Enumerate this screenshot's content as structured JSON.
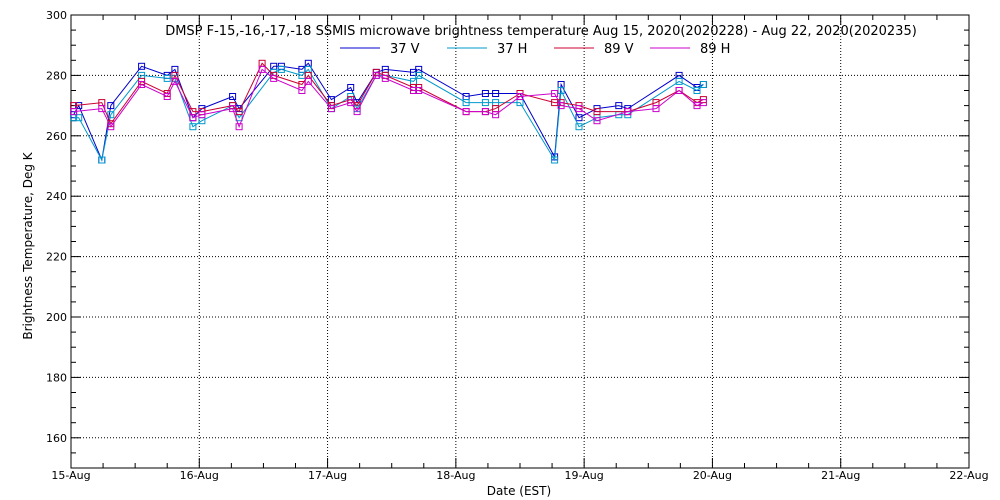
{
  "chart_data": {
    "type": "line",
    "title": "DMSP F-15,-16,-17,-18 SSMIS microwave brightness temperature Aug 15, 2020(2020228) - Aug 22, 2020(2020235)",
    "xlabel": "Date (EST)",
    "ylabel": "Brightness Temperature, Deg K",
    "xlim": [
      0,
      7
    ],
    "ylim": [
      150,
      300
    ],
    "x_ticks": [
      {
        "value": 0,
        "label": "15-Aug"
      },
      {
        "value": 1,
        "label": "16-Aug"
      },
      {
        "value": 2,
        "label": "17-Aug"
      },
      {
        "value": 3,
        "label": "18-Aug"
      },
      {
        "value": 4,
        "label": "19-Aug"
      },
      {
        "value": 5,
        "label": "20-Aug"
      },
      {
        "value": 6,
        "label": "21-Aug"
      },
      {
        "value": 7,
        "label": "22-Aug"
      }
    ],
    "y_ticks": [
      150,
      160,
      180,
      200,
      220,
      240,
      260,
      280,
      300
    ],
    "y_tick_labels": [
      "",
      "160",
      "180",
      "200",
      "220",
      "240",
      "260",
      "280",
      "300"
    ],
    "grid": true,
    "legend_position": "top-center",
    "series": [
      {
        "name": "37 V",
        "color": "#0000cc",
        "x": [
          0.02,
          0.06,
          0.24,
          0.31,
          0.55,
          0.75,
          0.81,
          0.95,
          1.02,
          1.26,
          1.31,
          1.58,
          1.64,
          1.8,
          1.85,
          2.03,
          2.18,
          2.23,
          2.38,
          2.45,
          2.67,
          2.71,
          3.08,
          3.23,
          3.31,
          3.5,
          3.77,
          3.82,
          3.96,
          4.1,
          4.27,
          4.34,
          4.74,
          4.88,
          4.93
        ],
        "y": [
          267,
          270,
          252,
          270,
          283,
          280,
          282,
          266,
          269,
          273,
          269,
          283,
          283,
          282,
          284,
          272,
          276,
          271,
          281,
          282,
          281,
          282,
          273,
          274,
          274,
          274,
          253,
          277,
          266,
          269,
          270,
          269,
          280,
          276,
          277
        ]
      },
      {
        "name": "37 H",
        "color": "#0099cc",
        "x": [
          0.02,
          0.06,
          0.24,
          0.31,
          0.55,
          0.75,
          0.81,
          0.95,
          1.02,
          1.26,
          1.31,
          1.58,
          1.64,
          1.8,
          1.85,
          2.03,
          2.18,
          2.23,
          2.38,
          2.45,
          2.67,
          2.71,
          3.08,
          3.23,
          3.31,
          3.5,
          3.77,
          3.82,
          3.96,
          4.1,
          4.27,
          4.34,
          4.74,
          4.88,
          4.93
        ],
        "y": [
          266,
          266,
          252,
          267,
          280,
          279,
          279,
          263,
          265,
          270,
          266,
          281,
          282,
          280,
          282,
          269,
          273,
          269,
          280,
          280,
          278,
          280,
          271,
          271,
          271,
          271,
          252,
          275,
          263,
          266,
          267,
          267,
          278,
          275,
          277
        ]
      },
      {
        "name": "89 V",
        "color": "#cc0033",
        "x": [
          0.02,
          0.24,
          0.31,
          0.55,
          0.75,
          0.81,
          0.95,
          1.02,
          1.26,
          1.31,
          1.49,
          1.58,
          1.8,
          1.85,
          2.03,
          2.18,
          2.23,
          2.38,
          2.45,
          2.67,
          2.71,
          3.08,
          3.23,
          3.31,
          3.5,
          3.77,
          3.82,
          3.96,
          4.1,
          4.34,
          4.56,
          4.74,
          4.88,
          4.93
        ],
        "y": [
          270,
          271,
          264,
          278,
          274,
          280,
          268,
          268,
          270,
          268,
          284,
          280,
          277,
          280,
          270,
          272,
          270,
          281,
          280,
          276,
          276,
          268,
          268,
          269,
          274,
          271,
          271,
          270,
          268,
          268,
          271,
          275,
          271,
          272
        ]
      },
      {
        "name": "89 H",
        "color": "#cc00cc",
        "x": [
          0.02,
          0.24,
          0.31,
          0.55,
          0.75,
          0.81,
          0.95,
          1.02,
          1.26,
          1.31,
          1.49,
          1.58,
          1.8,
          1.85,
          2.03,
          2.18,
          2.23,
          2.38,
          2.45,
          2.67,
          2.71,
          3.08,
          3.23,
          3.31,
          3.5,
          3.77,
          3.82,
          3.96,
          4.1,
          4.34,
          4.56,
          4.74,
          4.88,
          4.93
        ],
        "y": [
          268,
          269,
          263,
          277,
          273,
          278,
          266,
          267,
          269,
          263,
          282,
          279,
          275,
          278,
          269,
          271,
          268,
          280,
          279,
          275,
          275,
          268,
          268,
          267,
          273,
          274,
          270,
          269,
          265,
          268,
          269,
          275,
          270,
          271
        ]
      }
    ]
  }
}
